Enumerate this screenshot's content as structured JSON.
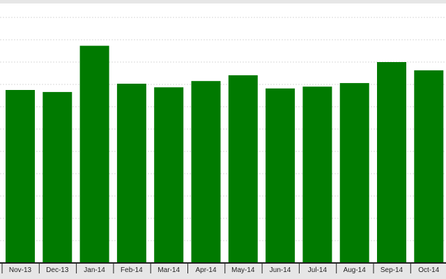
{
  "chart_data": {
    "type": "bar",
    "categories": [
      "Nov-13",
      "Dec-13",
      "Jan-14",
      "Feb-14",
      "Mar-14",
      "Apr-14",
      "May-14",
      "Jun-14",
      "Jul-14",
      "Aug-14",
      "Sep-14",
      "Oct-14"
    ],
    "values": [
      77.5,
      76.6,
      97.3,
      80.3,
      78.7,
      81.5,
      84.1,
      78.2,
      79.0,
      80.6,
      90.0,
      86.3
    ],
    "title": "",
    "xlabel": "",
    "ylabel": "",
    "ylim": [
      0,
      110
    ],
    "grid": true,
    "legend": "none",
    "colors": {
      "bar": "#007a00",
      "grid": "#d8d8d8",
      "axis": "#222222",
      "axis_band": "#e6e6e6"
    }
  }
}
